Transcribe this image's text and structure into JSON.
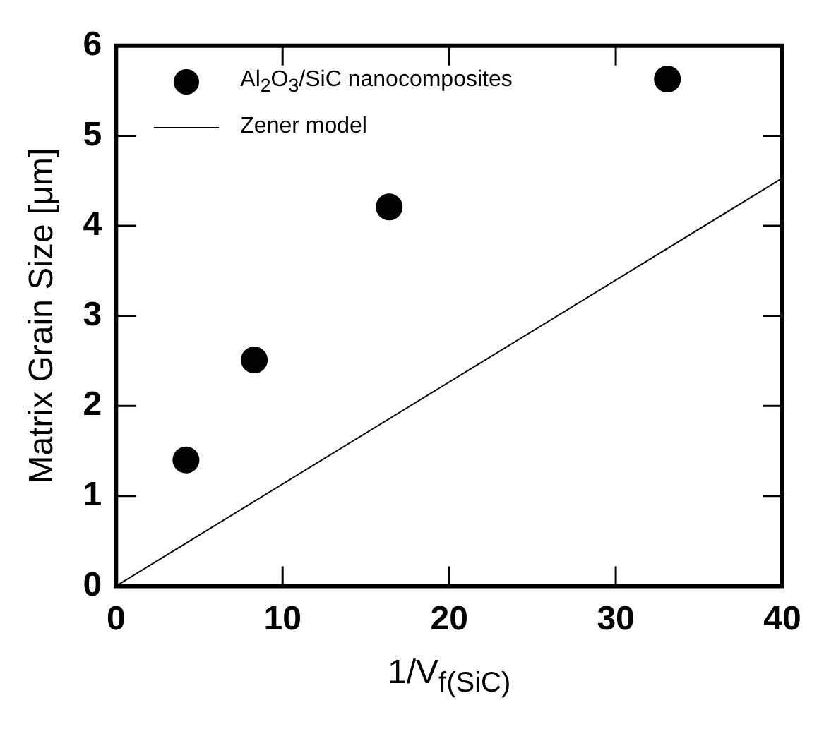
{
  "chart_data": {
    "type": "scatter",
    "xlabel": "1/V$_{f(SiC)}$",
    "ylabel": "Matrix Grain Size [μm]",
    "xlim": [
      0,
      40
    ],
    "xticks": [
      0,
      10,
      20,
      30,
      40
    ],
    "ylim": [
      0,
      6
    ],
    "yticks": [
      0,
      1,
      2,
      3,
      4,
      5,
      6
    ],
    "grid": false,
    "legend": "top left",
    "series": [
      {
        "name": "Al$_{2}$O$_{3}$/SiC nanocomposites",
        "type": "scatter",
        "marker": "circle",
        "color": "#000000",
        "x": [
          4.2,
          8.3,
          16.4,
          33.1
        ],
        "values": [
          1.4,
          2.51,
          4.21,
          5.63
        ]
      },
      {
        "name": "Zener model",
        "type": "line",
        "marker": "none",
        "line_style": "solid",
        "color": "#000000",
        "x": [
          0,
          40
        ],
        "values": [
          0,
          4.53
        ]
      }
    ]
  }
}
